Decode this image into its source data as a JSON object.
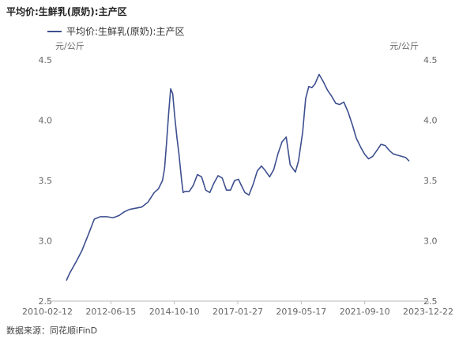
{
  "header": {
    "title": "平均价:生鲜乳(原奶):主产区",
    "legend_label": "平均价:生鲜乳(原奶):主产区",
    "unit_left": "元/公斤",
    "unit_right": "元/公斤"
  },
  "footer": {
    "source": "数据来源：同花顺iFinD"
  },
  "colors": {
    "line": "#3d4f8f",
    "axis": "#bbbbbb",
    "text": "#666666"
  },
  "chart_data": {
    "type": "line",
    "title": "平均价:生鲜乳(原奶):主产区",
    "ylabel": "元/公斤",
    "xlabel": "",
    "ylim": [
      2.5,
      4.5
    ],
    "yticks": [
      2.5,
      3.0,
      3.5,
      4.0,
      4.5
    ],
    "ytick_labels": [
      "2.5",
      "3.0",
      "3.5",
      "4.0",
      "4.5"
    ],
    "xlim": [
      "2010-02-12",
      "2023-12-22"
    ],
    "xtick_labels": [
      "2010-02-12",
      "2012-06-15",
      "2014-10-10",
      "2017-01-27",
      "2019-05-17",
      "2021-09-10",
      "2023-12-22"
    ],
    "grid": false,
    "legend_position": "top-left",
    "series": [
      {
        "name": "平均价:生鲜乳(原奶):主产区",
        "x": [
          "2010-02-12",
          "2010-04-01",
          "2010-07-01",
          "2010-10-01",
          "2011-01-01",
          "2011-04-01",
          "2011-07-01",
          "2011-10-01",
          "2012-01-01",
          "2012-04-01",
          "2012-06-15",
          "2012-09-01",
          "2012-12-01",
          "2013-03-01",
          "2013-06-01",
          "2013-09-01",
          "2013-11-01",
          "2014-01-01",
          "2014-02-01",
          "2014-03-01",
          "2014-04-01",
          "2014-05-01",
          "2014-06-01",
          "2014-07-01",
          "2014-08-01",
          "2014-09-01",
          "2014-10-10",
          "2014-11-01",
          "2014-12-01",
          "2015-02-01",
          "2015-04-01",
          "2015-06-01",
          "2015-08-01",
          "2015-10-01",
          "2015-12-01",
          "2016-02-01",
          "2016-04-01",
          "2016-06-01",
          "2016-08-01",
          "2016-10-01",
          "2016-12-01",
          "2017-01-27",
          "2017-03-01",
          "2017-05-01",
          "2017-07-01",
          "2017-09-01",
          "2017-11-01",
          "2018-01-01",
          "2018-03-01",
          "2018-05-01",
          "2018-07-01",
          "2018-09-01",
          "2018-11-01",
          "2019-01-01",
          "2019-03-01",
          "2019-05-17",
          "2019-07-01",
          "2019-09-01",
          "2019-10-15",
          "2019-12-01",
          "2020-01-15",
          "2020-03-01",
          "2020-05-01",
          "2020-07-01",
          "2020-09-01",
          "2020-11-01",
          "2021-01-01",
          "2021-03-01",
          "2021-05-01",
          "2021-07-01",
          "2021-09-10",
          "2021-11-01",
          "2022-01-01",
          "2022-03-01",
          "2022-05-01",
          "2022-07-01",
          "2022-09-01",
          "2022-11-01",
          "2023-01-01",
          "2023-03-01",
          "2023-05-01",
          "2023-07-01",
          "2023-09-01",
          "2023-11-01",
          "2023-12-22"
        ],
        "values": [
          2.67,
          2.73,
          2.82,
          2.92,
          3.05,
          3.18,
          3.2,
          3.2,
          3.19,
          3.21,
          3.24,
          3.26,
          3.27,
          3.28,
          3.32,
          3.4,
          3.43,
          3.5,
          3.6,
          3.8,
          4.05,
          4.26,
          4.22,
          4.03,
          3.86,
          3.72,
          3.5,
          3.4,
          3.41,
          3.41,
          3.46,
          3.55,
          3.53,
          3.42,
          3.4,
          3.48,
          3.54,
          3.52,
          3.42,
          3.42,
          3.5,
          3.51,
          3.47,
          3.4,
          3.38,
          3.47,
          3.58,
          3.62,
          3.58,
          3.53,
          3.59,
          3.72,
          3.82,
          3.86,
          3.63,
          3.57,
          3.66,
          3.9,
          4.18,
          4.28,
          4.27,
          4.3,
          4.38,
          4.32,
          4.25,
          4.2,
          4.14,
          4.13,
          4.15,
          4.07,
          3.95,
          3.85,
          3.78,
          3.72,
          3.68,
          3.7,
          3.75,
          3.8,
          3.79,
          3.75,
          3.72,
          3.71,
          3.7,
          3.69,
          3.66
        ]
      }
    ]
  }
}
